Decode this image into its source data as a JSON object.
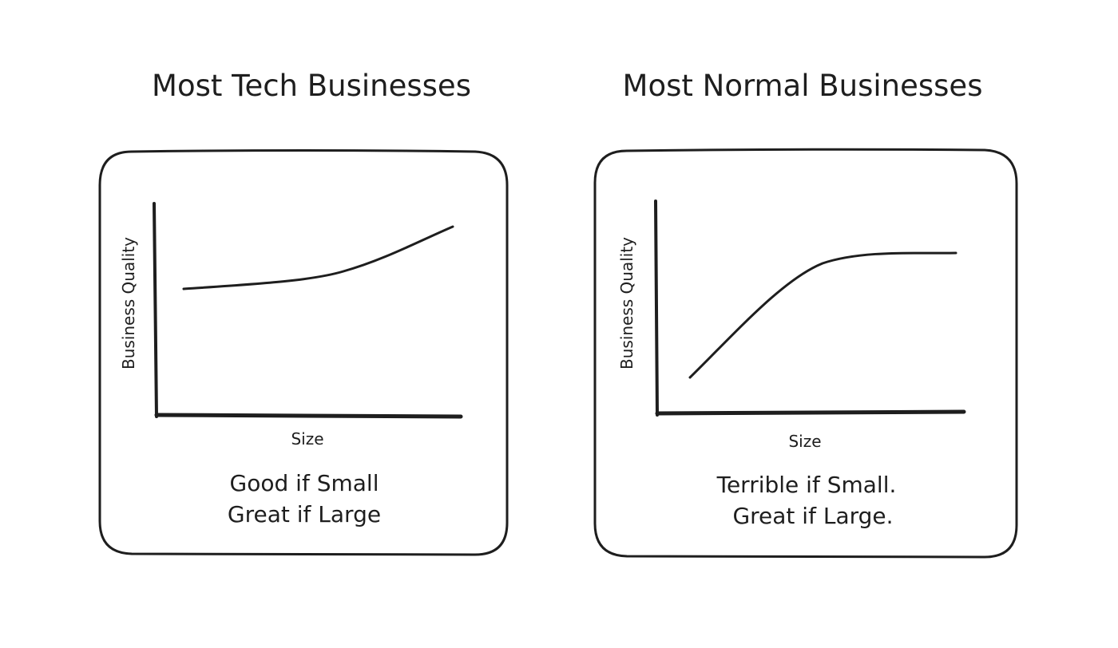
{
  "panels": [
    {
      "title": "Most Tech Businesses",
      "y_label": "Business Quality",
      "x_label": "Size",
      "caption": [
        "Good if Small",
        "Great if Large"
      ]
    },
    {
      "title": "Most Normal Businesses",
      "y_label": "Business Quality",
      "x_label": "Size",
      "caption": [
        "Terrible if Small.",
        "Great if Large."
      ]
    }
  ],
  "colors": {
    "ink": "#1e1e1e",
    "background": "#ffffff"
  }
}
